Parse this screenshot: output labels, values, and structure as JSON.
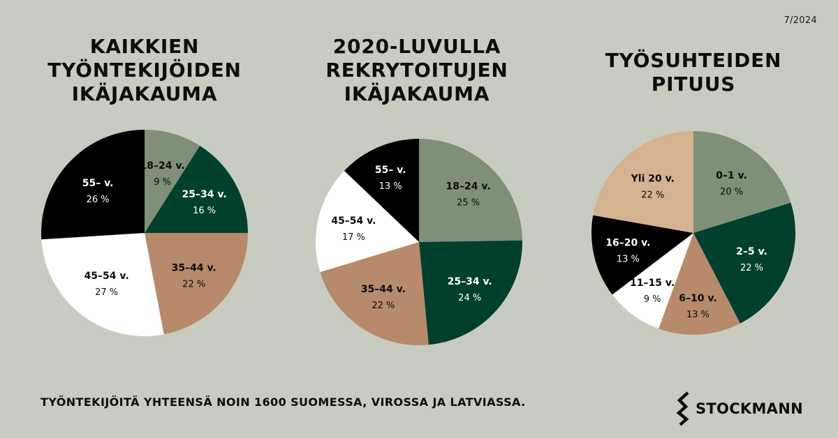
{
  "page": {
    "background": "#c8ccc0",
    "date": "7/2024",
    "footnote": "TYÖNTEKIJÖITÄ YHTEENSÄ NOIN 1600 SUOMESSA, VIROSSA JA LATVIASSA.",
    "logo_text": "STOCKMANN",
    "logo_icon": "stockmann-s-emblem-icon"
  },
  "colors": {
    "sage": "#7f8f78",
    "dark_green": "#01402d",
    "tan": "#b78a6c",
    "white": "#ffffff",
    "black": "#000000",
    "beige": "#d5b290"
  },
  "chart_data": [
    {
      "type": "pie",
      "title": "KAIKKIEN\nTYÖNTEKIJÖIDEN\nIKÄJAKAUMA",
      "slices": [
        {
          "label": "18–24 v.",
          "value": 9,
          "value_label": "9 %",
          "color": "sage"
        },
        {
          "label": "25–34 v.",
          "value": 16,
          "value_label": "16 %",
          "color": "dark_green"
        },
        {
          "label": "35–44 v.",
          "value": 22,
          "value_label": "22 %",
          "color": "tan"
        },
        {
          "label": "45–54 v.",
          "value": 27,
          "value_label": "27 %",
          "color": "white"
        },
        {
          "label": "55– v.",
          "value": 26,
          "value_label": "26 %",
          "color": "black"
        }
      ]
    },
    {
      "type": "pie",
      "title": "2020-LUVULLA\nREKRYTOITUJEN\nIKÄJAKAUMA",
      "slices": [
        {
          "label": "18–24 v.",
          "value": 25,
          "value_label": "25 %",
          "color": "sage"
        },
        {
          "label": "25–34 v.",
          "value": 24,
          "value_label": "24 %",
          "color": "dark_green"
        },
        {
          "label": "35–44 v.",
          "value": 22,
          "value_label": "22 %",
          "color": "tan"
        },
        {
          "label": "45–54 v.",
          "value": 17,
          "value_label": "17 %",
          "color": "white"
        },
        {
          "label": "55– v.",
          "value": 13,
          "value_label": "13 %",
          "color": "black"
        }
      ]
    },
    {
      "type": "pie",
      "title": "TYÖSUHTEIDEN\nPITUUS",
      "slices": [
        {
          "label": "0–1 v.",
          "value": 20,
          "value_label": "20 %",
          "color": "sage"
        },
        {
          "label": "2–5 v.",
          "value": 22,
          "value_label": "22 %",
          "color": "dark_green"
        },
        {
          "label": "6–10 v.",
          "value": 13,
          "value_label": "13 %",
          "color": "tan"
        },
        {
          "label": "11–15 v.",
          "value": 9,
          "value_label": "9 %",
          "color": "white"
        },
        {
          "label": "16–20 v.",
          "value": 13,
          "value_label": "13 %",
          "color": "black"
        },
        {
          "label": "Yli 20 v.",
          "value": 22,
          "value_label": "22 %",
          "color": "beige"
        }
      ]
    }
  ]
}
